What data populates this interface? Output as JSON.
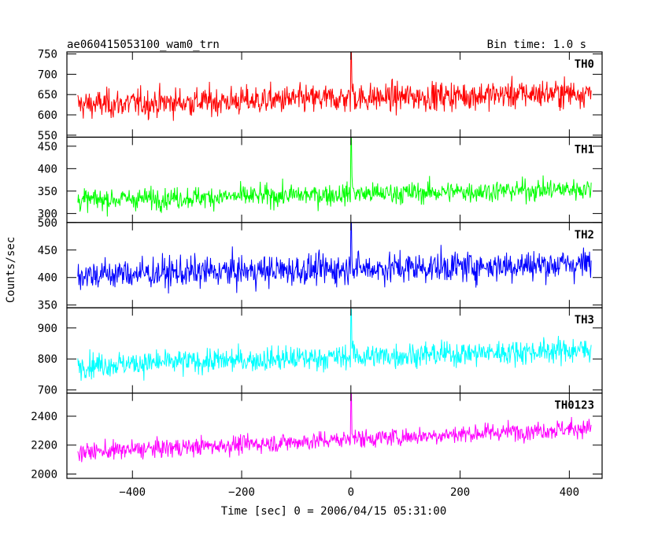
{
  "header": {
    "title": "ae060415053100_wam0_trn",
    "bin_time": "Bin time: 1.0 s"
  },
  "chart_data": {
    "type": "line",
    "xlabel": "Time [sec] 0 = 2006/04/15 05:31:00",
    "ylabel": "Counts/sec",
    "xlim": [
      -520,
      460
    ],
    "x_ticks": [
      -400,
      -200,
      0,
      200,
      400
    ],
    "x_tick_labels": [
      "−400",
      "−200",
      "0",
      "200",
      "400"
    ],
    "data_x_range": [
      -500,
      440
    ],
    "bin_size": 1.0,
    "panels": [
      {
        "name": "TH0",
        "color": "#ff0000",
        "ylim": [
          545,
          755
        ],
        "yticks": [
          550,
          600,
          650,
          700,
          750
        ],
        "baseline_start": 625,
        "baseline_end": 655,
        "noise_sd": 25,
        "peak": 755
      },
      {
        "name": "TH1",
        "color": "#00ff00",
        "ylim": [
          280,
          470
        ],
        "yticks": [
          300,
          350,
          400,
          450
        ],
        "baseline_start": 330,
        "baseline_end": 355,
        "noise_sd": 17,
        "peak": 470
      },
      {
        "name": "TH2",
        "color": "#0000ff",
        "ylim": [
          345,
          500
        ],
        "yticks": [
          350,
          400,
          450,
          500
        ],
        "baseline_start": 405,
        "baseline_end": 425,
        "noise_sd": 20,
        "peak": 500
      },
      {
        "name": "TH3",
        "color": "#00ffff",
        "ylim": [
          690,
          965
        ],
        "yticks": [
          700,
          800,
          900
        ],
        "baseline_start": 780,
        "baseline_end": 830,
        "noise_sd": 28,
        "peak": 960
      },
      {
        "name": "TH0123",
        "color": "#ff00ff",
        "ylim": [
          1970,
          2560
        ],
        "yticks": [
          2000,
          2200,
          2400
        ],
        "baseline_start": 2150,
        "baseline_end": 2320,
        "noise_sd": 45,
        "peak": 2560
      }
    ]
  }
}
